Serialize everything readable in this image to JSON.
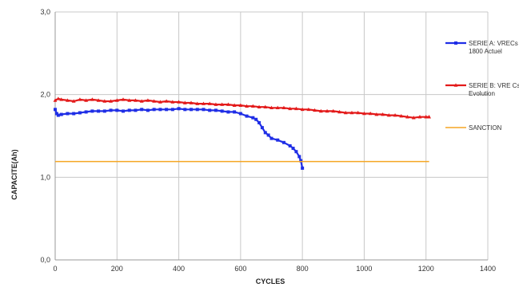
{
  "chart_data": {
    "type": "line",
    "xlabel": "CYCLES",
    "ylabel": "CAPACITE(Ah)",
    "xlim": [
      0,
      1400
    ],
    "ylim": [
      0,
      3
    ],
    "x_ticks": [
      0,
      200,
      400,
      600,
      800,
      1000,
      1200,
      1400
    ],
    "x_tick_labels": [
      "0",
      "200",
      "400",
      "600",
      "800",
      "1000",
      "1200",
      "1400"
    ],
    "y_ticks": [
      0,
      1,
      2,
      3
    ],
    "y_tick_labels": [
      "0,0",
      "1,0",
      "2,0",
      "3,0"
    ],
    "grid": "vertical and horizontal major gridlines",
    "legend_position": "right",
    "series": [
      {
        "name_lines": [
          "SERIE A: VRECs",
          "1800 Actuel"
        ],
        "color": "#1f2ee6",
        "marker": "square",
        "x": [
          0,
          5,
          10,
          20,
          40,
          60,
          80,
          100,
          120,
          140,
          160,
          180,
          200,
          220,
          240,
          260,
          280,
          300,
          320,
          340,
          360,
          380,
          400,
          420,
          440,
          460,
          480,
          500,
          520,
          540,
          560,
          580,
          600,
          620,
          640,
          650,
          660,
          670,
          680,
          690,
          700,
          720,
          740,
          760,
          770,
          780,
          790,
          795,
          800
        ],
        "y": [
          1.82,
          1.77,
          1.75,
          1.76,
          1.77,
          1.77,
          1.78,
          1.79,
          1.8,
          1.8,
          1.8,
          1.81,
          1.81,
          1.8,
          1.81,
          1.81,
          1.82,
          1.81,
          1.82,
          1.82,
          1.82,
          1.82,
          1.83,
          1.82,
          1.82,
          1.82,
          1.82,
          1.81,
          1.81,
          1.8,
          1.79,
          1.79,
          1.77,
          1.74,
          1.72,
          1.7,
          1.66,
          1.6,
          1.54,
          1.51,
          1.47,
          1.45,
          1.42,
          1.38,
          1.35,
          1.31,
          1.25,
          1.2,
          1.11
        ]
      },
      {
        "name_lines": [
          "SERIE B: VRE Cs",
          "Evolution"
        ],
        "color": "#e31a1a",
        "marker": "triangle",
        "x": [
          0,
          10,
          20,
          40,
          60,
          80,
          100,
          120,
          140,
          160,
          180,
          200,
          220,
          240,
          260,
          280,
          300,
          320,
          340,
          360,
          380,
          400,
          420,
          440,
          460,
          480,
          500,
          520,
          540,
          560,
          580,
          600,
          620,
          640,
          660,
          680,
          700,
          720,
          740,
          760,
          780,
          800,
          820,
          840,
          860,
          880,
          900,
          920,
          940,
          960,
          980,
          1000,
          1020,
          1040,
          1060,
          1080,
          1100,
          1120,
          1140,
          1160,
          1180,
          1200,
          1210
        ],
        "y": [
          1.93,
          1.95,
          1.94,
          1.93,
          1.92,
          1.94,
          1.93,
          1.94,
          1.93,
          1.92,
          1.92,
          1.93,
          1.94,
          1.93,
          1.93,
          1.92,
          1.93,
          1.92,
          1.91,
          1.92,
          1.91,
          1.91,
          1.9,
          1.9,
          1.89,
          1.89,
          1.89,
          1.88,
          1.88,
          1.88,
          1.87,
          1.87,
          1.86,
          1.86,
          1.85,
          1.85,
          1.84,
          1.84,
          1.84,
          1.83,
          1.83,
          1.82,
          1.82,
          1.81,
          1.8,
          1.8,
          1.8,
          1.79,
          1.78,
          1.78,
          1.78,
          1.77,
          1.77,
          1.76,
          1.76,
          1.75,
          1.75,
          1.74,
          1.73,
          1.72,
          1.73,
          1.73,
          1.73
        ]
      },
      {
        "name_lines": [
          "SANCTION"
        ],
        "color": "#f5a623",
        "marker": "none",
        "x": [
          0,
          1210
        ],
        "y": [
          1.19,
          1.19
        ]
      }
    ]
  }
}
